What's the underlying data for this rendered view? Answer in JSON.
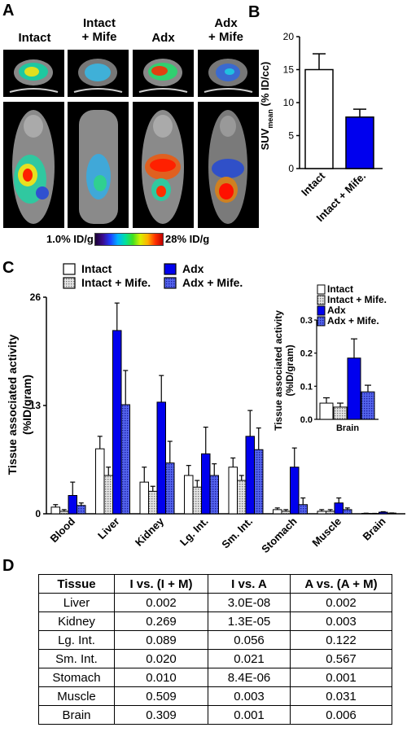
{
  "panels": {
    "a": "A",
    "b": "B",
    "c": "C",
    "d": "D"
  },
  "panelA": {
    "groups": [
      "Intact",
      "Intact\n+ Mife",
      "Adx",
      "Adx\n+ Mife"
    ],
    "colorbar": {
      "min_label": "1.0% ID/g",
      "max_label": "28% ID/g"
    }
  },
  "chartB": {
    "type": "bar",
    "ylabel_main": "SUV",
    "ylabel_sub": "mean",
    "ylabel_rest": " (% ID/cc)",
    "ylim": [
      0,
      20
    ],
    "yticks": [
      "0",
      "5",
      "10",
      "15",
      "20"
    ],
    "categories": [
      "Intact",
      "Intact + Mife."
    ],
    "values": [
      15.0,
      7.8
    ],
    "errors": [
      2.4,
      1.2
    ],
    "colors": [
      "#ffffff",
      "#0000ee"
    ]
  },
  "chart_data": [
    {
      "type": "bar",
      "ylabel": "Tissue associated activity (%ID/gram)",
      "ylim": [
        0,
        26
      ],
      "yticks": [
        "0",
        "13",
        "26"
      ],
      "categories": [
        "Blood",
        "Liver",
        "Kidney",
        "Lg. Int.",
        "Sm. Int.",
        "Stomach",
        "Muscle",
        "Brain"
      ],
      "series": [
        {
          "name": "Intact",
          "values": [
            0.8,
            7.8,
            3.8,
            4.6,
            5.6,
            0.5,
            0.3,
            0.05
          ],
          "errors": [
            0.3,
            1.5,
            1.8,
            1.2,
            1.1,
            0.2,
            0.2,
            0.02
          ]
        },
        {
          "name": "Intact + Mife.",
          "values": [
            0.3,
            4.6,
            2.7,
            3.2,
            4.0,
            0.3,
            0.3,
            0.04
          ],
          "errors": [
            0.2,
            1.0,
            0.6,
            0.8,
            0.6,
            0.2,
            0.2,
            0.01
          ]
        },
        {
          "name": "Adx",
          "values": [
            2.2,
            22.0,
            13.4,
            7.2,
            9.3,
            5.6,
            1.3,
            0.19
          ],
          "errors": [
            1.6,
            3.3,
            3.2,
            3.2,
            3.1,
            2.3,
            0.6,
            0.06
          ]
        },
        {
          "name": "Adx + Mife.",
          "values": [
            1.0,
            13.1,
            6.1,
            4.6,
            7.7,
            1.1,
            0.5,
            0.08
          ],
          "errors": [
            0.3,
            4.1,
            2.6,
            1.4,
            2.6,
            0.8,
            0.2,
            0.02
          ]
        }
      ],
      "colors": [
        "#ffffff",
        "#d9d9d9",
        "#0000ee",
        "#4455ee"
      ]
    },
    {
      "type": "bar",
      "ylabel": "Tissue associated activity (%ID/gram)",
      "ylim": [
        0,
        0.3
      ],
      "yticks": [
        "0.0",
        "0.1",
        "0.2",
        "0.3"
      ],
      "categories": [
        "Brain"
      ],
      "series": [
        {
          "name": "Intact",
          "values": [
            0.049
          ],
          "errors": [
            0.016
          ]
        },
        {
          "name": "Intact + Mife.",
          "values": [
            0.037
          ],
          "errors": [
            0.012
          ]
        },
        {
          "name": "Adx",
          "values": [
            0.185
          ],
          "errors": [
            0.058
          ]
        },
        {
          "name": "Adx + Mife.",
          "values": [
            0.083
          ],
          "errors": [
            0.02
          ]
        }
      ]
    }
  ],
  "table": {
    "headers": [
      "Tissue",
      "I vs. (I + M)",
      "I vs. A",
      "A vs. (A + M)"
    ],
    "rows": [
      [
        "Liver",
        "0.002",
        "3.0E-08",
        "0.002"
      ],
      [
        "Kidney",
        "0.269",
        "1.3E-05",
        "0.003"
      ],
      [
        "Lg. Int.",
        "0.089",
        "0.056",
        "0.122"
      ],
      [
        "Sm. Int.",
        "0.020",
        "0.021",
        "0.567"
      ],
      [
        "Stomach",
        "0.010",
        "8.4E-06",
        "0.001"
      ],
      [
        "Muscle",
        "0.509",
        "0.003",
        "0.031"
      ],
      [
        "Brain",
        "0.309",
        "0.001",
        "0.006"
      ]
    ]
  }
}
